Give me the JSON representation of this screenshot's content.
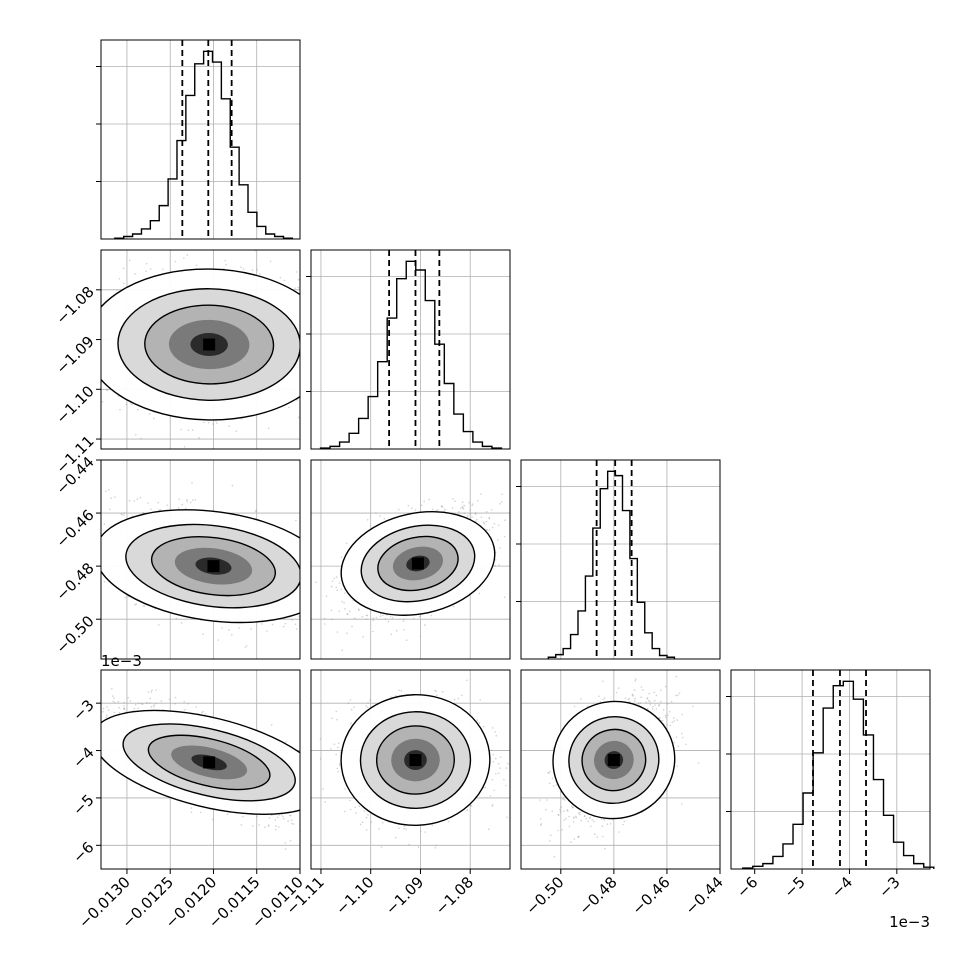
{
  "chart_data": {
    "type": "corner",
    "parameters": [
      {
        "range": [
          -0.0133,
          -0.011
        ],
        "ticks": [
          -0.013,
          -0.0125,
          -0.012,
          -0.0115,
          -0.011
        ],
        "tick_labels": [
          "−0.0130",
          "−0.0125",
          "−0.0120",
          "−0.0115",
          "−0.0110"
        ],
        "quantiles": [
          -0.01236,
          -0.01206,
          -0.01179
        ],
        "offset_label": ""
      },
      {
        "range": [
          -1.112,
          -1.072
        ],
        "ticks": [
          -1.11,
          -1.1,
          -1.09,
          -1.08
        ],
        "tick_labels": [
          "−1.11",
          "−1.10",
          "−1.09",
          "−1.08"
        ],
        "quantiles": [
          -1.0963,
          -1.091,
          -1.0862
        ],
        "offset_label": ""
      },
      {
        "range": [
          -0.515,
          -0.44
        ],
        "ticks": [
          -0.5,
          -0.48,
          -0.46,
          -0.44
        ],
        "tick_labels": [
          "−0.50",
          "−0.48",
          "−0.46",
          "−0.44"
        ],
        "quantiles": [
          -0.4865,
          -0.4795,
          -0.4733
        ],
        "offset_label": ""
      },
      {
        "range": [
          -6.5,
          -2.3
        ],
        "ticks": [
          -6,
          -5,
          -4,
          -3
        ],
        "tick_labels": [
          "−6",
          "−5",
          "−4",
          "−3"
        ],
        "quantiles": [
          -4.77,
          -4.2,
          -3.65
        ],
        "offset_label": "1e−3"
      }
    ],
    "histograms": [
      {
        "counts": [
          1,
          3,
          6,
          12,
          22,
          40,
          72,
          118,
          172,
          210,
          225,
          212,
          168,
          110,
          65,
          32,
          15,
          6,
          3,
          1
        ]
      },
      {
        "counts": [
          1,
          3,
          8,
          18,
          35,
          60,
          100,
          150,
          195,
          215,
          205,
          170,
          120,
          75,
          40,
          20,
          8,
          3,
          1
        ]
      },
      {
        "counts": [
          2,
          5,
          12,
          28,
          55,
          95,
          150,
          195,
          215,
          210,
          170,
          115,
          65,
          30,
          12,
          4,
          2
        ]
      },
      {
        "counts": [
          1,
          3,
          6,
          14,
          28,
          50,
          85,
          130,
          180,
          205,
          210,
          190,
          150,
          100,
          60,
          30,
          15,
          6,
          2
        ]
      }
    ],
    "pairs": [
      {
        "row": 1,
        "col": 0,
        "center": [
          -0.01205,
          -1.091
        ],
        "spread": [
          0.00062,
          0.0066
        ],
        "corr": -0.05
      },
      {
        "row": 2,
        "col": 0,
        "center": [
          -0.012,
          -0.48
        ],
        "spread": [
          0.0006,
          0.01
        ],
        "corr": -0.45
      },
      {
        "row": 2,
        "col": 1,
        "center": [
          -1.0905,
          -0.479
        ],
        "spread": [
          0.0068,
          0.0095
        ],
        "corr": 0.5
      },
      {
        "row": 3,
        "col": 0,
        "center": [
          -0.01205,
          -4.25
        ],
        "spread": [
          0.0006,
          0.62
        ],
        "corr": -0.75
      },
      {
        "row": 3,
        "col": 1,
        "center": [
          -1.091,
          -4.2
        ],
        "spread": [
          0.0065,
          0.6
        ],
        "corr": 0.05
      },
      {
        "row": 3,
        "col": 2,
        "center": [
          -0.48,
          -4.2
        ],
        "spread": [
          0.01,
          0.6
        ],
        "corr": 0.45
      }
    ],
    "grid": true
  }
}
